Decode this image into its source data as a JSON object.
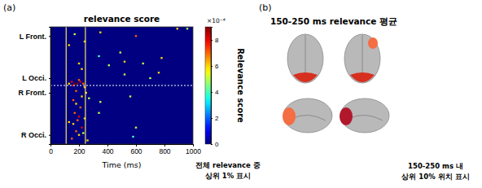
{
  "chart_data": {
    "type": "heatmap",
    "panel_label": "(a)",
    "title": "relevance score",
    "x_label": "Time (ms)",
    "xlim": [
      0,
      1000
    ],
    "xticks": [
      0,
      200,
      400,
      600,
      800,
      1000
    ],
    "ylim": [
      0,
      64
    ],
    "yticks": [
      {
        "value": 5,
        "label": "L Front."
      },
      {
        "value": 28,
        "label": "L Occi."
      },
      {
        "value": 36,
        "label": "R Front."
      },
      {
        "value": 59,
        "label": "R Occi."
      }
    ],
    "window": [
      110,
      245
    ],
    "divider": 32,
    "cells": [
      [
        350,
        3,
        6
      ],
      [
        600,
        5,
        7
      ],
      [
        890,
        1,
        6
      ],
      [
        960,
        1,
        5
      ],
      [
        170,
        4,
        5
      ],
      [
        130,
        10,
        6
      ],
      [
        240,
        8,
        6
      ],
      [
        490,
        14,
        5
      ],
      [
        340,
        16,
        4
      ],
      [
        520,
        19,
        6
      ],
      [
        650,
        20,
        5
      ],
      [
        780,
        17,
        6
      ],
      [
        200,
        20,
        6
      ],
      [
        410,
        21,
        5
      ],
      [
        220,
        23,
        6
      ],
      [
        520,
        26,
        5
      ],
      [
        700,
        28,
        5
      ],
      [
        760,
        25,
        6
      ],
      [
        150,
        30,
        8
      ],
      [
        170,
        31,
        9
      ],
      [
        190,
        31,
        9
      ],
      [
        210,
        30,
        8
      ],
      [
        230,
        31,
        7
      ],
      [
        160,
        32,
        8
      ],
      [
        200,
        29,
        7
      ],
      [
        130,
        31,
        6
      ],
      [
        240,
        33,
        6
      ],
      [
        180,
        35,
        7
      ],
      [
        250,
        36,
        6
      ],
      [
        220,
        38,
        6
      ],
      [
        160,
        40,
        7
      ],
      [
        180,
        42,
        6
      ],
      [
        210,
        44,
        7
      ],
      [
        350,
        41,
        5
      ],
      [
        560,
        38,
        5
      ],
      [
        270,
        39,
        5
      ],
      [
        170,
        47,
        7
      ],
      [
        200,
        49,
        8
      ],
      [
        190,
        51,
        7
      ],
      [
        160,
        53,
        6
      ],
      [
        220,
        55,
        8
      ],
      [
        180,
        57,
        7
      ],
      [
        200,
        59,
        6
      ],
      [
        150,
        61,
        7
      ],
      [
        240,
        50,
        6
      ],
      [
        230,
        58,
        5
      ],
      [
        340,
        47,
        5
      ],
      [
        130,
        52,
        6
      ],
      [
        600,
        55,
        5
      ],
      [
        580,
        60,
        4
      ],
      [
        260,
        62,
        6
      ]
    ],
    "clim": [
      0,
      9
    ],
    "cticks": [
      0,
      2,
      4,
      6,
      8
    ],
    "colorbar_label": "Relevance score",
    "colorbar_scale_label": "×10⁻⁴",
    "annotation": [
      "전체 relevance 중",
      "상위 1% 표시"
    ]
  },
  "brain_panel": {
    "panel_label": "(b)",
    "title": "150-250 ms relevance 평균",
    "annotation": [
      "150-250 ms 내",
      "상위 10% 위치 표시"
    ]
  }
}
